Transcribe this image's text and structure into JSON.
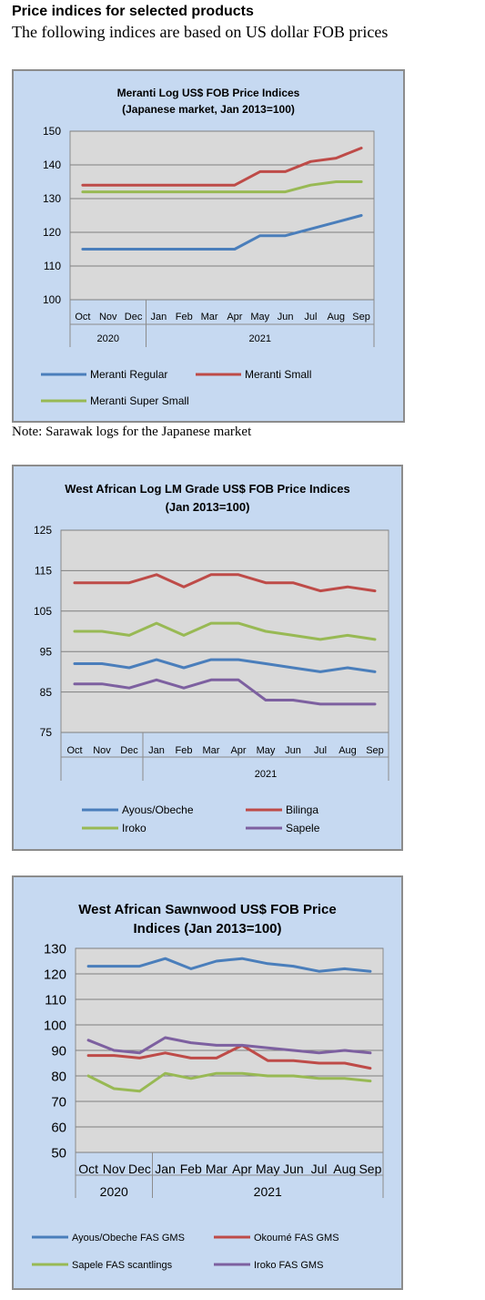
{
  "page": {
    "heading": "Price indices for selected products",
    "subheading": "The following indices are based on US dollar FOB prices",
    "note": "Note: Sarawak logs for the Japanese market"
  },
  "chart_data": [
    {
      "type": "line",
      "title": "Meranti Log US$ FOB Price Indices",
      "subtitle": "(Japanese market, Jan 2013=100)",
      "categories": [
        "Oct",
        "Nov",
        "Dec",
        "Jan",
        "Feb",
        "Mar",
        "Apr",
        "May",
        "Jun",
        "Jul",
        "Aug",
        "Sep"
      ],
      "year_groups": [
        {
          "label": "2020",
          "span": 3
        },
        {
          "label": "2021",
          "span": 9
        }
      ],
      "ylim": [
        100,
        150
      ],
      "yticks": [
        100,
        110,
        120,
        130,
        140,
        150
      ],
      "grid": true,
      "legend_position": "bottom",
      "series": [
        {
          "name": "Meranti Regular",
          "color": "#4a7ebb",
          "values": [
            115,
            115,
            115,
            115,
            115,
            115,
            115,
            119,
            119,
            121,
            123,
            125
          ]
        },
        {
          "name": "Meranti Small",
          "color": "#be4b48",
          "values": [
            134,
            134,
            134,
            134,
            134,
            134,
            134,
            138,
            138,
            141,
            142,
            145
          ]
        },
        {
          "name": "Meranti Super Small",
          "color": "#98b954",
          "values": [
            132,
            132,
            132,
            132,
            132,
            132,
            132,
            132,
            132,
            134,
            135,
            135
          ]
        }
      ]
    },
    {
      "type": "line",
      "title": "West African Log LM Grade US$ FOB Price Indices",
      "subtitle": "(Jan 2013=100)",
      "categories": [
        "Oct",
        "Nov",
        "Dec",
        "Jan",
        "Feb",
        "Mar",
        "Apr",
        "May",
        "Jun",
        "Jul",
        "Aug",
        "Sep"
      ],
      "year_groups": [
        {
          "label": "",
          "span": 3
        },
        {
          "label": "2021",
          "span": 9
        }
      ],
      "ylim": [
        75,
        125
      ],
      "yticks": [
        75,
        85,
        95,
        105,
        115,
        125
      ],
      "grid": true,
      "legend_position": "bottom",
      "series": [
        {
          "name": "Ayous/Obeche",
          "color": "#4a7ebb",
          "values": [
            92,
            92,
            91,
            93,
            91,
            93,
            93,
            92,
            91,
            90,
            91,
            90
          ]
        },
        {
          "name": "Bilinga",
          "color": "#be4b48",
          "values": [
            112,
            112,
            112,
            114,
            111,
            114,
            114,
            112,
            112,
            110,
            111,
            110
          ]
        },
        {
          "name": "Iroko",
          "color": "#98b954",
          "values": [
            100,
            100,
            99,
            102,
            99,
            102,
            102,
            100,
            99,
            98,
            99,
            98
          ]
        },
        {
          "name": "Sapele",
          "color": "#7d60a0",
          "values": [
            87,
            87,
            86,
            88,
            86,
            88,
            88,
            83,
            83,
            82,
            82,
            82
          ]
        }
      ]
    },
    {
      "type": "line",
      "title": "West African Sawnwood US$ FOB Price",
      "subtitle": "Indices (Jan 2013=100)",
      "categories": [
        "Oct",
        "Nov",
        "Dec",
        "Jan",
        "Feb",
        "Mar",
        "Apr",
        "May",
        "Jun",
        "Jul",
        "Aug",
        "Sep"
      ],
      "year_groups": [
        {
          "label": "2020",
          "span": 3
        },
        {
          "label": "2021",
          "span": 9
        }
      ],
      "ylim": [
        50,
        130
      ],
      "yticks": [
        50,
        60,
        70,
        80,
        90,
        100,
        110,
        120,
        130
      ],
      "grid": true,
      "legend_position": "bottom",
      "series": [
        {
          "name": "Ayous/Obeche  FAS GMS",
          "color": "#4a7ebb",
          "values": [
            123,
            123,
            123,
            126,
            122,
            125,
            126,
            124,
            123,
            121,
            122,
            121
          ]
        },
        {
          "name": "Okoumé  FAS GMS",
          "color": "#be4b48",
          "values": [
            88,
            88,
            87,
            89,
            87,
            87,
            92,
            86,
            86,
            85,
            85,
            83
          ]
        },
        {
          "name": "Sapele FAS scantlings",
          "color": "#98b954",
          "values": [
            80,
            75,
            74,
            81,
            79,
            81,
            81,
            80,
            80,
            79,
            79,
            78
          ]
        },
        {
          "name": "Iroko FAS GMS",
          "color": "#7d60a0",
          "values": [
            94,
            90,
            89,
            95,
            93,
            92,
            92,
            91,
            90,
            89,
            90,
            89
          ]
        }
      ]
    }
  ]
}
